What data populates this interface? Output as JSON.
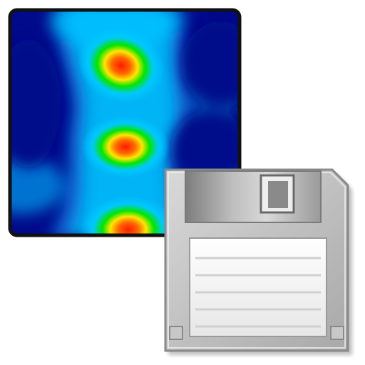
{
  "icon": {
    "name": "save-heatmap-image-icon",
    "parts": [
      "heatmap-thumbnail",
      "floppy-disk-icon"
    ]
  },
  "colors": {
    "heatmap_low": "#000080",
    "heatmap_mid_low": "#00bfff",
    "heatmap_mid": "#00ff00",
    "heatmap_mid_high": "#ffff00",
    "heatmap_high": "#ff0000",
    "frame": "#111111",
    "floppy_body": "#b8b8b8",
    "floppy_shutter": "#8f8f8f",
    "floppy_label": "#f2f2f2"
  }
}
